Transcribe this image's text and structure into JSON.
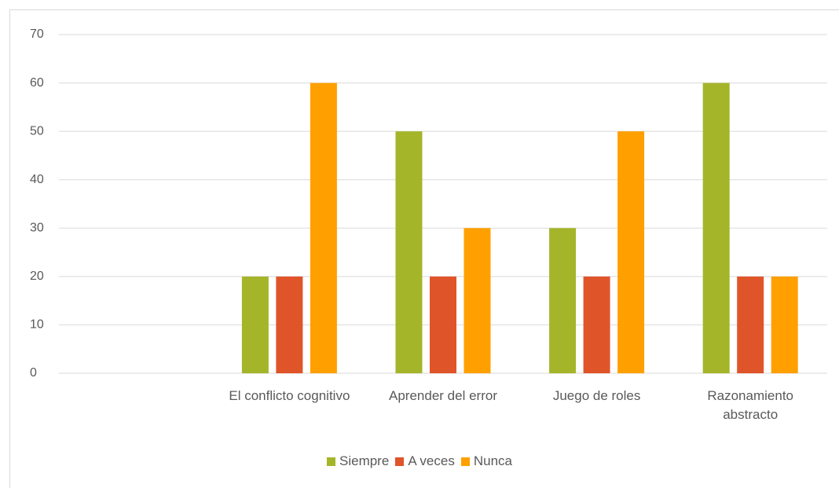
{
  "chart_data": {
    "type": "bar",
    "categories": [
      null,
      "El conflicto cognitivo",
      "Aprender del error",
      "Juego de roles",
      "Razonamiento abstracto"
    ],
    "series": [
      {
        "name": "Siempre",
        "color": "#a5b52a",
        "values": [
          null,
          20,
          50,
          30,
          60
        ]
      },
      {
        "name": "A veces",
        "color": "#e0542a",
        "values": [
          null,
          20,
          20,
          20,
          20
        ]
      },
      {
        "name": "Nunca",
        "color": "#ffa000",
        "values": [
          null,
          60,
          30,
          50,
          20
        ]
      }
    ],
    "ylim": [
      0,
      70
    ],
    "yticks": [
      0,
      10,
      20,
      30,
      40,
      50,
      60,
      70
    ],
    "grid": true,
    "legend": "bottom"
  }
}
